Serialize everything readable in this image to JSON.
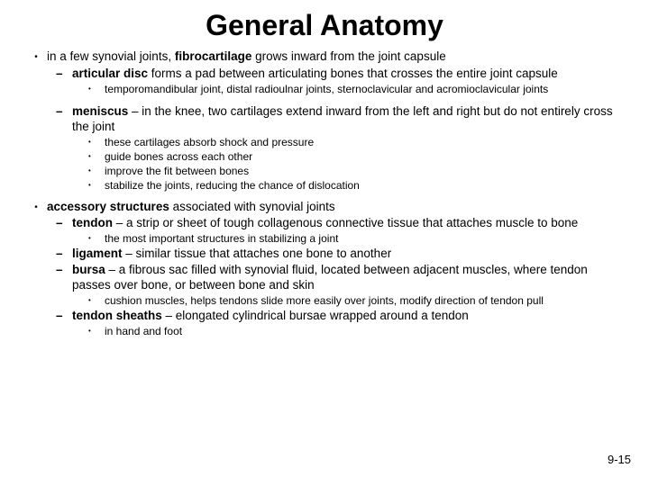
{
  "title": "General Anatomy",
  "page_number": "9-15",
  "b1": {
    "lead": "in a few synovial joints, ",
    "bold": "fibrocartilage",
    "tail": " grows inward from the joint capsule"
  },
  "b1d1": {
    "bold": "articular disc",
    "tail": " forms a pad between articulating bones that crosses the entire joint capsule"
  },
  "b1d1s1": "temporomandibular joint, distal radioulnar joints, sternoclavicular and acromioclavicular joints",
  "b1d2": {
    "bold": "meniscus",
    "tail": " – in the knee, two cartilages extend inward from the left and right but do not entirely cross the joint"
  },
  "b1d2s1": "these cartilages absorb shock and pressure",
  "b1d2s2": "guide bones across each other",
  "b1d2s3": "improve the fit between bones",
  "b1d2s4": "stabilize the joints, reducing the chance of dislocation",
  "b2": {
    "bold": "accessory structures",
    "tail": " associated with synovial joints"
  },
  "b2d1": {
    "bold": "tendon",
    "tail": " – a strip or sheet of tough collagenous connective tissue that attaches muscle to bone"
  },
  "b2d1s1": "the most important structures in stabilizing a joint",
  "b2d2": {
    "bold": "ligament",
    "tail": " – similar tissue that attaches one bone to another"
  },
  "b2d3": {
    "bold": "bursa",
    "tail": " – a fibrous sac filled with synovial fluid, located between adjacent muscles, where tendon passes over bone, or between bone and skin"
  },
  "b2d3s1": "cushion muscles, helps tendons slide more easily over joints, modify direction of tendon pull",
  "b2d4": {
    "bold": "tendon sheaths",
    "tail": " – elongated cylindrical bursae wrapped around a tendon"
  },
  "b2d4s1": "in hand and foot"
}
